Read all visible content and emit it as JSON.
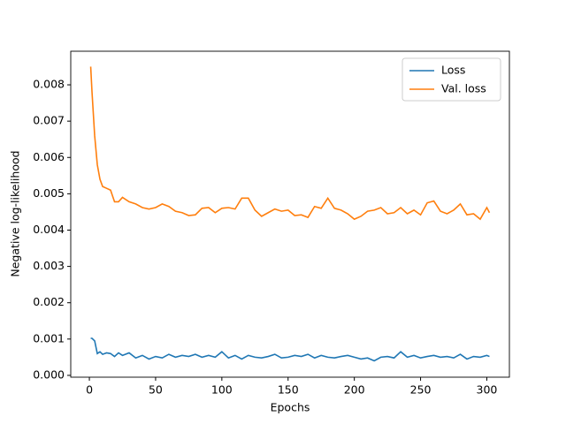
{
  "chart_data": {
    "type": "line",
    "xlabel": "Epochs",
    "ylabel": "Negative log-likelihood",
    "x": [
      1,
      2,
      4,
      6,
      8,
      10,
      13,
      16,
      19,
      22,
      25,
      30,
      35,
      40,
      45,
      50,
      55,
      60,
      65,
      70,
      75,
      80,
      85,
      90,
      95,
      100,
      105,
      110,
      115,
      120,
      125,
      130,
      135,
      140,
      145,
      150,
      155,
      160,
      165,
      170,
      175,
      180,
      185,
      190,
      195,
      200,
      205,
      210,
      215,
      220,
      225,
      230,
      235,
      240,
      245,
      250,
      255,
      260,
      265,
      270,
      275,
      280,
      285,
      290,
      295,
      300,
      302
    ],
    "series": [
      {
        "name": "Loss",
        "color": "#1f77b4",
        "values": [
          0.00102,
          0.00102,
          0.00095,
          0.0006,
          0.00065,
          0.00058,
          0.00062,
          0.0006,
          0.00052,
          0.00062,
          0.00055,
          0.00062,
          0.00048,
          0.00055,
          0.00045,
          0.00052,
          0.00048,
          0.00058,
          0.0005,
          0.00055,
          0.00052,
          0.00058,
          0.0005,
          0.00055,
          0.0005,
          0.00065,
          0.00048,
          0.00055,
          0.00045,
          0.00055,
          0.0005,
          0.00048,
          0.00052,
          0.00058,
          0.00048,
          0.0005,
          0.00055,
          0.00052,
          0.00058,
          0.00048,
          0.00055,
          0.0005,
          0.00048,
          0.00052,
          0.00055,
          0.0005,
          0.00045,
          0.00048,
          0.0004,
          0.0005,
          0.00052,
          0.00048,
          0.00065,
          0.0005,
          0.00055,
          0.00048,
          0.00052,
          0.00055,
          0.0005,
          0.00052,
          0.00048,
          0.00058,
          0.00045,
          0.00052,
          0.0005,
          0.00055,
          0.00052
        ]
      },
      {
        "name": "Val. loss",
        "color": "#ff7f0e",
        "values": [
          0.0085,
          0.0078,
          0.0066,
          0.0058,
          0.0054,
          0.0052,
          0.00515,
          0.0051,
          0.00478,
          0.00478,
          0.0049,
          0.00478,
          0.00472,
          0.00462,
          0.00458,
          0.00462,
          0.00472,
          0.00465,
          0.00452,
          0.00448,
          0.0044,
          0.00442,
          0.0046,
          0.00462,
          0.00448,
          0.0046,
          0.00462,
          0.00458,
          0.00488,
          0.00488,
          0.00455,
          0.00438,
          0.00448,
          0.00458,
          0.00452,
          0.00455,
          0.0044,
          0.00442,
          0.00435,
          0.00465,
          0.0046,
          0.00488,
          0.0046,
          0.00455,
          0.00445,
          0.0043,
          0.00438,
          0.00452,
          0.00455,
          0.00462,
          0.00445,
          0.00448,
          0.00462,
          0.00445,
          0.00455,
          0.00442,
          0.00475,
          0.0048,
          0.00452,
          0.00445,
          0.00455,
          0.00472,
          0.00442,
          0.00445,
          0.0043,
          0.00462,
          0.00448
        ]
      }
    ],
    "xlim": [
      -14.05,
      317.05
    ],
    "xticks": [
      0,
      50,
      100,
      150,
      200,
      250,
      300
    ],
    "ylim": [
      -5e-05,
      0.008925
    ],
    "yticks": [
      {
        "value": 0,
        "label": "0.000"
      },
      {
        "value": 0.001,
        "label": "0.001"
      },
      {
        "value": 0.002,
        "label": "0.002"
      },
      {
        "value": 0.003,
        "label": "0.003"
      },
      {
        "value": 0.004,
        "label": "0.004"
      },
      {
        "value": 0.005,
        "label": "0.005"
      },
      {
        "value": 0.006,
        "label": "0.006"
      },
      {
        "value": 0.007,
        "label": "0.007"
      },
      {
        "value": 0.008,
        "label": "0.008"
      }
    ],
    "legend": "upper right",
    "grid": false
  }
}
